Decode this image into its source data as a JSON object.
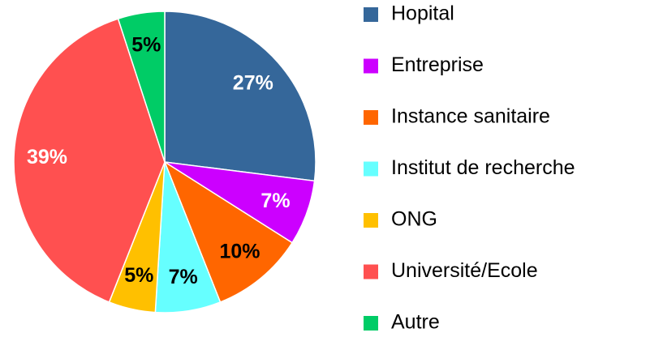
{
  "chart_data": {
    "type": "pie",
    "categories": [
      "Hopital",
      "Entreprise",
      "Instance sanitaire",
      "Institut de recherche",
      "ONG",
      "Université/Ecole",
      "Autre"
    ],
    "values": [
      27,
      7,
      10,
      7,
      5,
      39,
      5
    ],
    "value_labels": [
      "27%",
      "7%",
      "10%",
      "7%",
      "5%",
      "39%",
      "5%"
    ],
    "colors": [
      "#35679a",
      "#cc00ff",
      "#ff6600",
      "#66ffff",
      "#ffc000",
      "#ff5050",
      "#00cc66"
    ],
    "label_colors": [
      "#ffffff",
      "#ffffff",
      "#000000",
      "#000000",
      "#000000",
      "#ffffff",
      "#000000"
    ]
  }
}
